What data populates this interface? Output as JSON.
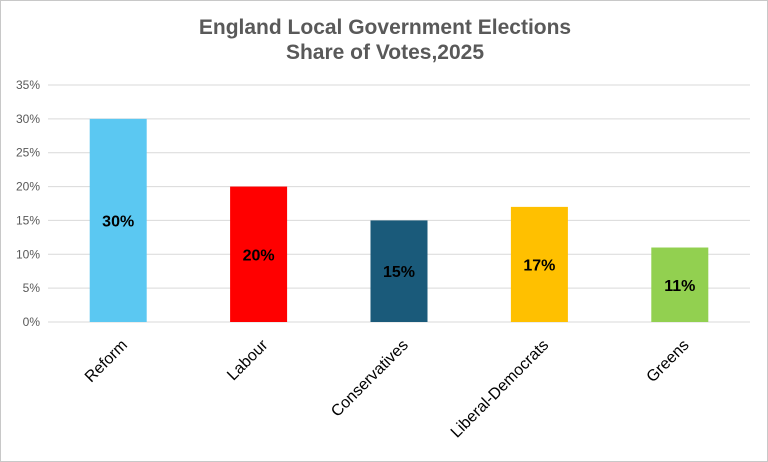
{
  "chart_data": {
    "type": "bar",
    "title": "England Local Government Elections",
    "subtitle": "Share of Votes,2025",
    "categories": [
      "Reform",
      "Labour",
      "Conservatives",
      "Liberal-Democrats",
      "Greens"
    ],
    "values": [
      30,
      20,
      15,
      17,
      11
    ],
    "data_labels": [
      "30%",
      "20%",
      "15%",
      "17%",
      "11%"
    ],
    "colors": [
      "#5bc8f2",
      "#ff0000",
      "#1a5a7a",
      "#ffc000",
      "#92d050"
    ],
    "ylim": [
      0,
      35
    ],
    "yticks": [
      0,
      5,
      10,
      15,
      20,
      25,
      30,
      35
    ],
    "ytick_labels": [
      "0%",
      "5%",
      "10%",
      "15%",
      "20%",
      "25%",
      "30%",
      "35%"
    ],
    "grid": true,
    "legend": "none"
  }
}
